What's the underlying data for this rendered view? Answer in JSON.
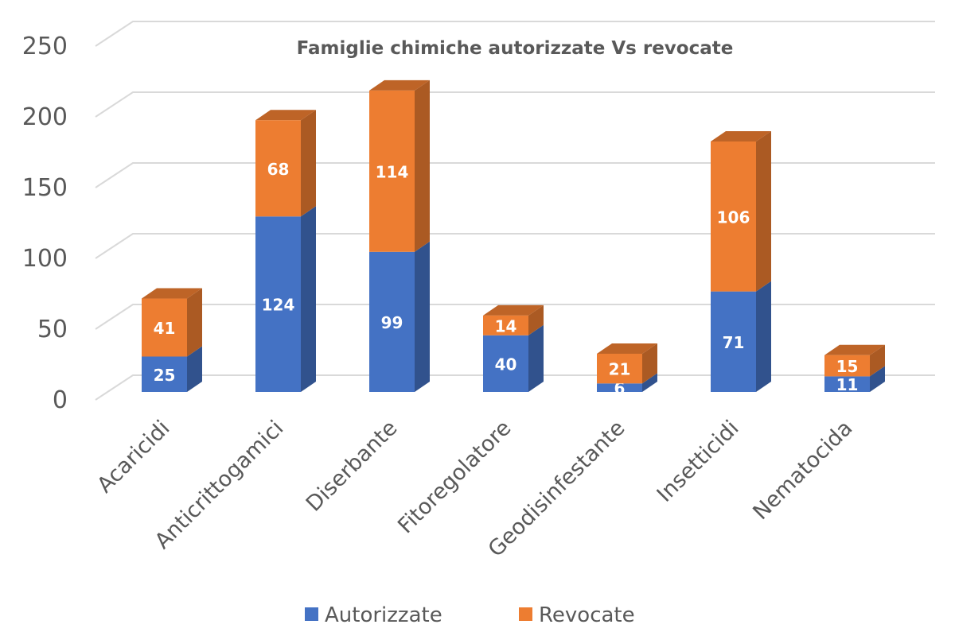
{
  "chart_data": {
    "type": "bar",
    "stacked": true,
    "style": "3d-column",
    "title": "Famiglie chimiche autorizzate Vs revocate",
    "categories": [
      "Acaricidi",
      "Anticrittogamici",
      "Diserbante",
      "Fitoregolatore",
      "Geodisinfestante",
      "Insetticidi",
      "Nematocida"
    ],
    "series": [
      {
        "name": "Autorizzate",
        "color": "#4472C4",
        "values": [
          25,
          124,
          99,
          40,
          6,
          71,
          11
        ]
      },
      {
        "name": "Revocate",
        "color": "#ED7D31",
        "values": [
          41,
          68,
          114,
          14,
          21,
          106,
          15
        ]
      }
    ],
    "yticks": [
      "0",
      "50",
      "100",
      "150",
      "200",
      "250"
    ],
    "ylim": [
      0,
      250
    ],
    "grid": true,
    "legend": "bottom",
    "data_labels": true
  }
}
